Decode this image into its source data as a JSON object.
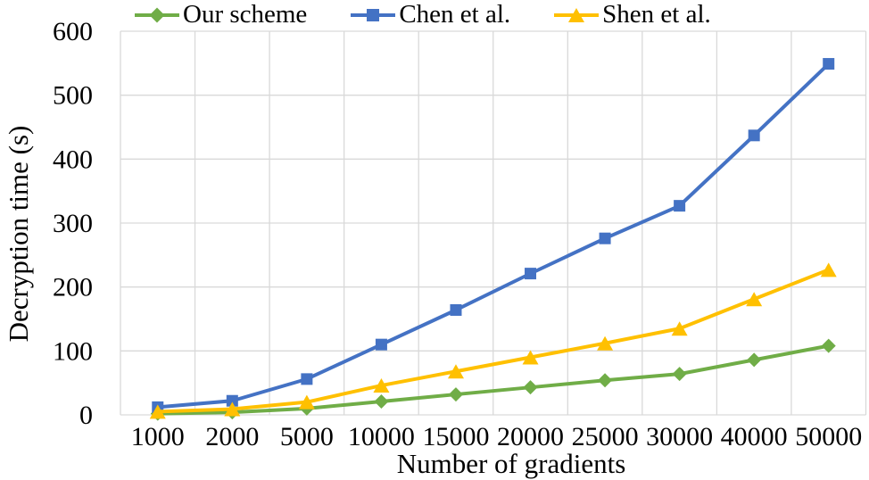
{
  "figure": {
    "background": "#ffffff",
    "text_color": "#000000"
  },
  "chart_data": {
    "type": "line",
    "title": "",
    "xlabel": "Number of gradients",
    "ylabel": "Decryption time (s)",
    "categories": [
      "1000",
      "2000",
      "5000",
      "10000",
      "15000",
      "20000",
      "25000",
      "30000",
      "40000",
      "50000"
    ],
    "series": [
      {
        "name": "Our scheme",
        "color": "#70AD47",
        "marker": "diamond",
        "values": [
          2,
          4,
          10,
          21,
          32,
          43,
          54,
          64,
          86,
          108
        ]
      },
      {
        "name": "Chen et al.",
        "color": "#4472C4",
        "marker": "square",
        "values": [
          12,
          22,
          56,
          110,
          164,
          221,
          276,
          327,
          437,
          549
        ]
      },
      {
        "name": "Shen et al.",
        "color": "#FFC000",
        "marker": "triangle",
        "values": [
          5,
          9,
          20,
          46,
          68,
          90,
          112,
          135,
          181,
          227
        ]
      }
    ],
    "ylim": [
      0,
      600
    ],
    "ytick_step": 100,
    "yticks": [
      0,
      100,
      200,
      300,
      400,
      500,
      600
    ],
    "grid": true,
    "gridline_color": "#D9D9D9",
    "legend_position": "top",
    "line_width": 4,
    "marker_size": 16
  }
}
